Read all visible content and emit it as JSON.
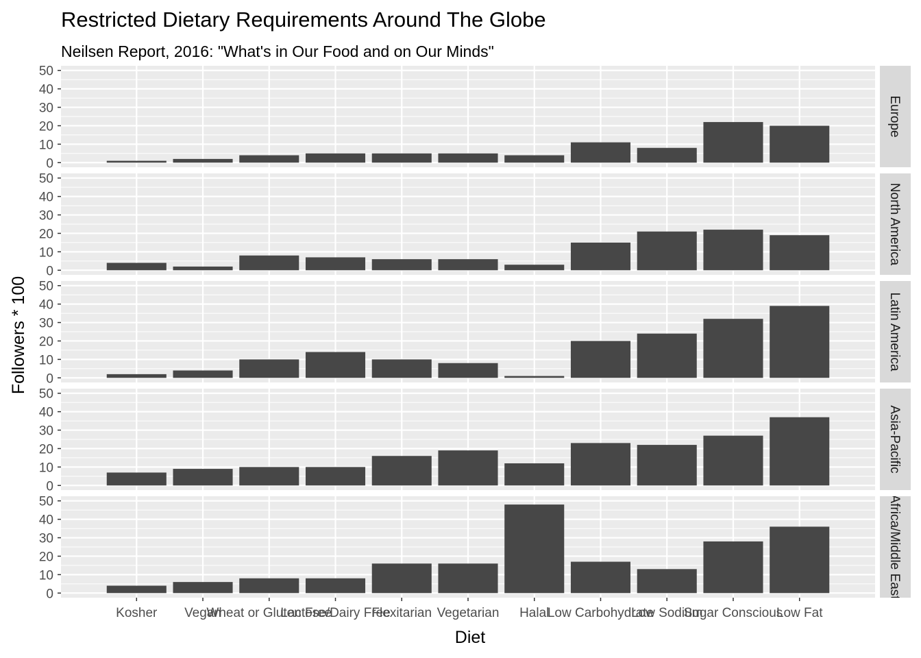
{
  "chart_data": {
    "type": "bar",
    "title": "Restricted Dietary Requirements Around The Globe",
    "subtitle": "Neilsen Report, 2016: \"What's in Our Food and on Our Minds\"",
    "xlabel": "Diet",
    "ylabel": "Followers * 100",
    "ylim": [
      0,
      50
    ],
    "yticks": [
      "0",
      "10",
      "20",
      "30",
      "40",
      "50"
    ],
    "grid": true,
    "legend": "none",
    "facet_layout": "rows",
    "categories": [
      "Kosher",
      "Vegan",
      "Wheat or Gluten Free",
      "Lactose/Dairy Free",
      "Flexitarian",
      "Vegetarian",
      "Halal",
      "Low Carbohydrate",
      "Low Sodium",
      "Sugar Conscious",
      "Low Fat"
    ],
    "panels": [
      {
        "label": "Europe",
        "values": [
          1,
          2,
          4,
          5,
          5,
          5,
          4,
          11,
          8,
          22,
          20
        ]
      },
      {
        "label": "North America",
        "values": [
          4,
          2,
          8,
          7,
          6,
          6,
          3,
          15,
          21,
          22,
          19
        ]
      },
      {
        "label": "Latin America",
        "values": [
          2,
          4,
          10,
          14,
          10,
          8,
          1,
          20,
          24,
          32,
          39
        ]
      },
      {
        "label": "Asia-Pacific",
        "values": [
          7,
          9,
          10,
          10,
          16,
          19,
          12,
          23,
          22,
          27,
          37
        ]
      },
      {
        "label": "Africa/Middle East",
        "values": [
          4,
          6,
          8,
          8,
          16,
          16,
          48,
          17,
          13,
          28,
          36
        ]
      }
    ]
  },
  "colors": {
    "panel_background": "#ebebeb",
    "grid": "#ffffff",
    "bar_fill": "#474747",
    "strip_background": "#d9d9d9",
    "strip_text": "#1a1a1a",
    "tick_text": "#4d4d4d",
    "tick_mark": "#333333"
  }
}
